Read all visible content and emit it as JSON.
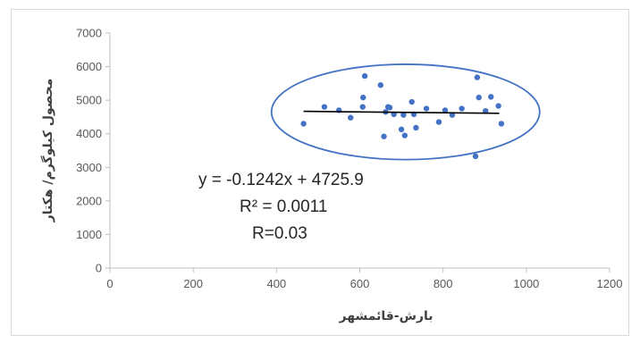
{
  "chart_data": {
    "type": "scatter",
    "xlabel": "بارش-قائمشهر",
    "ylabel": "محصول کیلوگرم/ هکتار",
    "xlim": [
      0,
      1200
    ],
    "ylim": [
      0,
      7000
    ],
    "x_ticks": [
      "0",
      "200",
      "400",
      "600",
      "800",
      "1000",
      "1200"
    ],
    "y_ticks": [
      "0",
      "1000",
      "2000",
      "3000",
      "4000",
      "5000",
      "6000",
      "7000"
    ],
    "grid": false,
    "legend": "none",
    "marker_color": "#4472c4",
    "trendline": {
      "slope": -0.1242,
      "intercept": 4725.9,
      "x_range": [
        465,
        935
      ],
      "color": "#000000"
    },
    "annotations": [
      "y = -0.1242x + 4725.9",
      "R² = 0.0011",
      "R=0.03"
    ],
    "points": [
      {
        "x": 465,
        "y": 4300
      },
      {
        "x": 515,
        "y": 4800
      },
      {
        "x": 550,
        "y": 4700
      },
      {
        "x": 578,
        "y": 4480
      },
      {
        "x": 607,
        "y": 4800
      },
      {
        "x": 608,
        "y": 5080
      },
      {
        "x": 612,
        "y": 5720
      },
      {
        "x": 650,
        "y": 5450
      },
      {
        "x": 658,
        "y": 3920
      },
      {
        "x": 662,
        "y": 4650
      },
      {
        "x": 668,
        "y": 4800
      },
      {
        "x": 672,
        "y": 4780
      },
      {
        "x": 682,
        "y": 4580
      },
      {
        "x": 700,
        "y": 4130
      },
      {
        "x": 705,
        "y": 4560
      },
      {
        "x": 708,
        "y": 3950
      },
      {
        "x": 725,
        "y": 4950
      },
      {
        "x": 730,
        "y": 4580
      },
      {
        "x": 735,
        "y": 4180
      },
      {
        "x": 760,
        "y": 4750
      },
      {
        "x": 790,
        "y": 4350
      },
      {
        "x": 805,
        "y": 4700
      },
      {
        "x": 822,
        "y": 4560
      },
      {
        "x": 845,
        "y": 4750
      },
      {
        "x": 878,
        "y": 3330
      },
      {
        "x": 882,
        "y": 5680
      },
      {
        "x": 886,
        "y": 5080
      },
      {
        "x": 902,
        "y": 4680
      },
      {
        "x": 915,
        "y": 5100
      },
      {
        "x": 933,
        "y": 4830
      },
      {
        "x": 940,
        "y": 4300
      }
    ],
    "ellipse": {
      "center": [
        710,
        4650
      ],
      "rx_data": 322,
      "ry_data": 1420,
      "color": "#4472c4"
    }
  }
}
